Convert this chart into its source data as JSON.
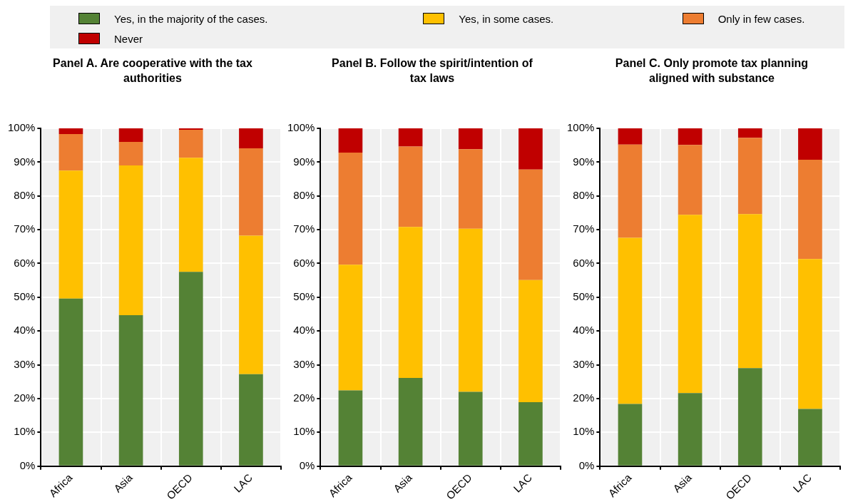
{
  "chart_data": [
    {
      "type": "bar",
      "stacked": true,
      "title": "Panel A. Are cooperative with the tax authorities",
      "categories": [
        "Africa",
        "Asia",
        "OECD",
        "LAC"
      ],
      "ylim": [
        0,
        100
      ],
      "yticks": [
        {
          "value": 0,
          "label": "0%"
        },
        {
          "value": 10,
          "label": "10%"
        },
        {
          "value": 20,
          "label": "20%"
        },
        {
          "value": 30,
          "label": "30%"
        },
        {
          "value": 40,
          "label": "40%"
        },
        {
          "value": 50,
          "label": "50%"
        },
        {
          "value": 60,
          "label": "60%"
        },
        {
          "value": 70,
          "label": "70%"
        },
        {
          "value": 80,
          "label": "80%"
        },
        {
          "value": 90,
          "label": "90%"
        },
        {
          "value": 100,
          "label": "100%"
        }
      ],
      "grid": true,
      "legend": "top",
      "series": [
        {
          "name": "Yes, in the majority of the cases.",
          "color": "#548235",
          "values": [
            49.6,
            44.7,
            57.5,
            27.2
          ]
        },
        {
          "name": "Yes, in some cases.",
          "color": "#ffc000",
          "values": [
            37.9,
            44.3,
            33.8,
            41.0
          ]
        },
        {
          "name": "Only in few cases.",
          "color": "#ed7d31",
          "values": [
            10.8,
            7.0,
            8.3,
            25.9
          ]
        },
        {
          "name": "Never",
          "color": "#c00000",
          "values": [
            1.7,
            4.0,
            0.4,
            5.9
          ]
        }
      ]
    },
    {
      "type": "bar",
      "stacked": true,
      "title": "Panel B. Follow the spirit/intention of tax laws",
      "categories": [
        "Africa",
        "Asia",
        "OECD",
        "LAC"
      ],
      "ylim": [
        0,
        100
      ],
      "yticks": [
        {
          "value": 0,
          "label": "0%"
        },
        {
          "value": 10,
          "label": "10%"
        },
        {
          "value": 20,
          "label": "20%"
        },
        {
          "value": 30,
          "label": "30%"
        },
        {
          "value": 40,
          "label": "40%"
        },
        {
          "value": 50,
          "label": "50%"
        },
        {
          "value": 60,
          "label": "60%"
        },
        {
          "value": 70,
          "label": "70%"
        },
        {
          "value": 80,
          "label": "80%"
        },
        {
          "value": 90,
          "label": "90%"
        },
        {
          "value": 100,
          "label": "100%"
        }
      ],
      "grid": true,
      "series": [
        {
          "color": "#548235",
          "values": [
            22.4,
            26.1,
            22.0,
            18.9
          ]
        },
        {
          "color": "#ffc000",
          "values": [
            37.2,
            44.7,
            48.3,
            36.2
          ]
        },
        {
          "color": "#ed7d31",
          "values": [
            33.2,
            23.8,
            23.5,
            32.7
          ]
        },
        {
          "color": "#c00000",
          "values": [
            7.2,
            5.4,
            6.2,
            12.2
          ]
        }
      ]
    },
    {
      "type": "bar",
      "stacked": true,
      "title": "Panel C. Only promote tax planning aligned with substance",
      "categories": [
        "Africa",
        "Asia",
        "OECD",
        "LAC"
      ],
      "ylim": [
        0,
        100
      ],
      "yticks": [
        {
          "value": 0,
          "label": "0%"
        },
        {
          "value": 10,
          "label": "10%"
        },
        {
          "value": 20,
          "label": "20%"
        },
        {
          "value": 30,
          "label": "30%"
        },
        {
          "value": 40,
          "label": "40%"
        },
        {
          "value": 50,
          "label": "50%"
        },
        {
          "value": 60,
          "label": "60%"
        },
        {
          "value": 70,
          "label": "70%"
        },
        {
          "value": 80,
          "label": "80%"
        },
        {
          "value": 90,
          "label": "90%"
        },
        {
          "value": 100,
          "label": "100%"
        }
      ],
      "grid": true,
      "series": [
        {
          "color": "#548235",
          "values": [
            18.4,
            21.6,
            29.0,
            16.9
          ]
        },
        {
          "color": "#ffc000",
          "values": [
            49.2,
            52.8,
            45.6,
            44.4
          ]
        },
        {
          "color": "#ed7d31",
          "values": [
            27.6,
            20.7,
            22.6,
            29.4
          ]
        },
        {
          "color": "#c00000",
          "values": [
            4.8,
            4.9,
            2.8,
            9.3
          ]
        }
      ]
    }
  ]
}
